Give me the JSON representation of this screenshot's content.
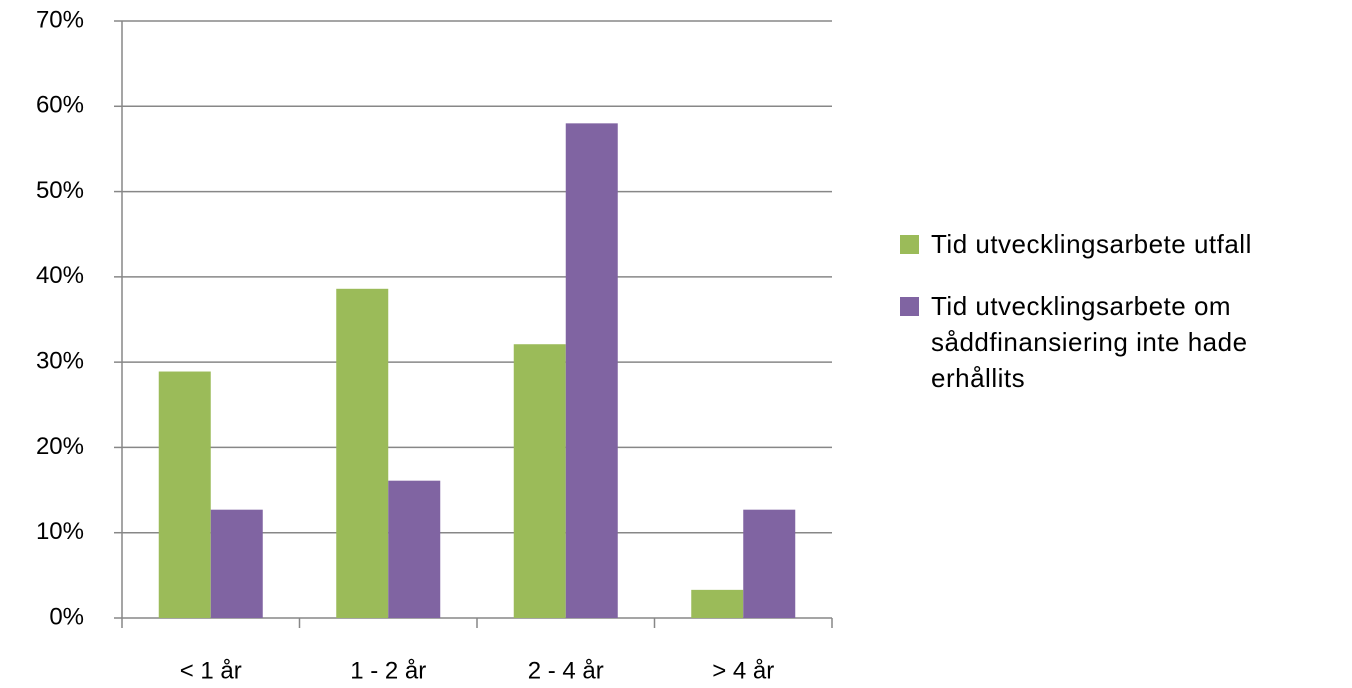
{
  "chart_data": {
    "type": "bar",
    "categories": [
      "< 1 år",
      "1 - 2 år",
      "2 - 4 år",
      "> 4 år"
    ],
    "series": [
      {
        "name": "Tid utvecklingsarbete utfall",
        "color": "#9bbb59",
        "values": [
          28.9,
          38.6,
          32.1,
          3.3
        ]
      },
      {
        "name": "Tid utvecklingsarbete om såddfinansiering inte hade erhållits",
        "color": "#8064a2",
        "values": [
          12.7,
          16.1,
          58.0,
          12.7
        ]
      }
    ],
    "ylim": [
      0,
      70
    ],
    "yticks": [
      {
        "value": 0,
        "label": "0%"
      },
      {
        "value": 10,
        "label": "10%"
      },
      {
        "value": 20,
        "label": "20%"
      },
      {
        "value": 30,
        "label": "30%"
      },
      {
        "value": 40,
        "label": "40%"
      },
      {
        "value": 50,
        "label": "50%"
      },
      {
        "value": 60,
        "label": "60%"
      },
      {
        "value": 70,
        "label": "70%"
      }
    ],
    "grid": true,
    "legend": "right"
  }
}
